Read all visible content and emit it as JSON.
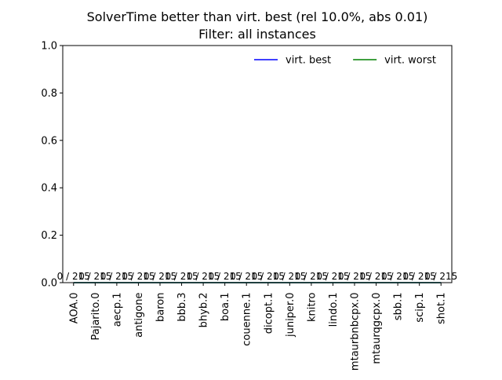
{
  "chart_data": {
    "type": "line",
    "title": "SolverTime better than virt. best (rel 10.0%, abs 0.01)",
    "subtitle": "Filter: all instances",
    "xlabel": "",
    "ylabel": "",
    "categories": [
      "AOA.0",
      "Pajarito.0",
      "aecp.1",
      "antigone",
      "baron",
      "bbb.3",
      "bhyb.2",
      "boa.1",
      "couenne.1",
      "dicopt.1",
      "juniper.0",
      "knitro",
      "lindo.1",
      "mtaurbnbcpx.0",
      "mtaurqgcpx.0",
      "sbb.1",
      "scip.1",
      "shot.1"
    ],
    "values": [
      0,
      0,
      0,
      0,
      0,
      0,
      0,
      0,
      0,
      0,
      0,
      0,
      0,
      0,
      0,
      0,
      0,
      0
    ],
    "bar_labels": [
      "0 / 215",
      "0 / 215",
      "0 / 215",
      "0 / 215",
      "0 / 215",
      "0 / 215",
      "0 / 215",
      "0 / 215",
      "0 / 215",
      "0 / 215",
      "0 / 215",
      "0 / 215",
      "0 / 215",
      "0 / 215",
      "0 / 215",
      "0 / 215",
      "0 / 215",
      "0 / 215"
    ],
    "series": [
      {
        "name": "virt. best",
        "color": "#0000ff",
        "values": [
          0,
          0,
          0,
          0,
          0,
          0,
          0,
          0,
          0,
          0,
          0,
          0,
          0,
          0,
          0,
          0,
          0,
          0
        ]
      },
      {
        "name": "virt. worst",
        "color": "#008000",
        "values": [
          0,
          0,
          0,
          0,
          0,
          0,
          0,
          0,
          0,
          0,
          0,
          0,
          0,
          0,
          0,
          0,
          0,
          0
        ]
      }
    ],
    "ylim": [
      0,
      1
    ],
    "yticks": [
      "0.0",
      "0.2",
      "0.4",
      "0.6",
      "0.8",
      "1.0"
    ],
    "legend_position": "top-right",
    "grid": false
  }
}
